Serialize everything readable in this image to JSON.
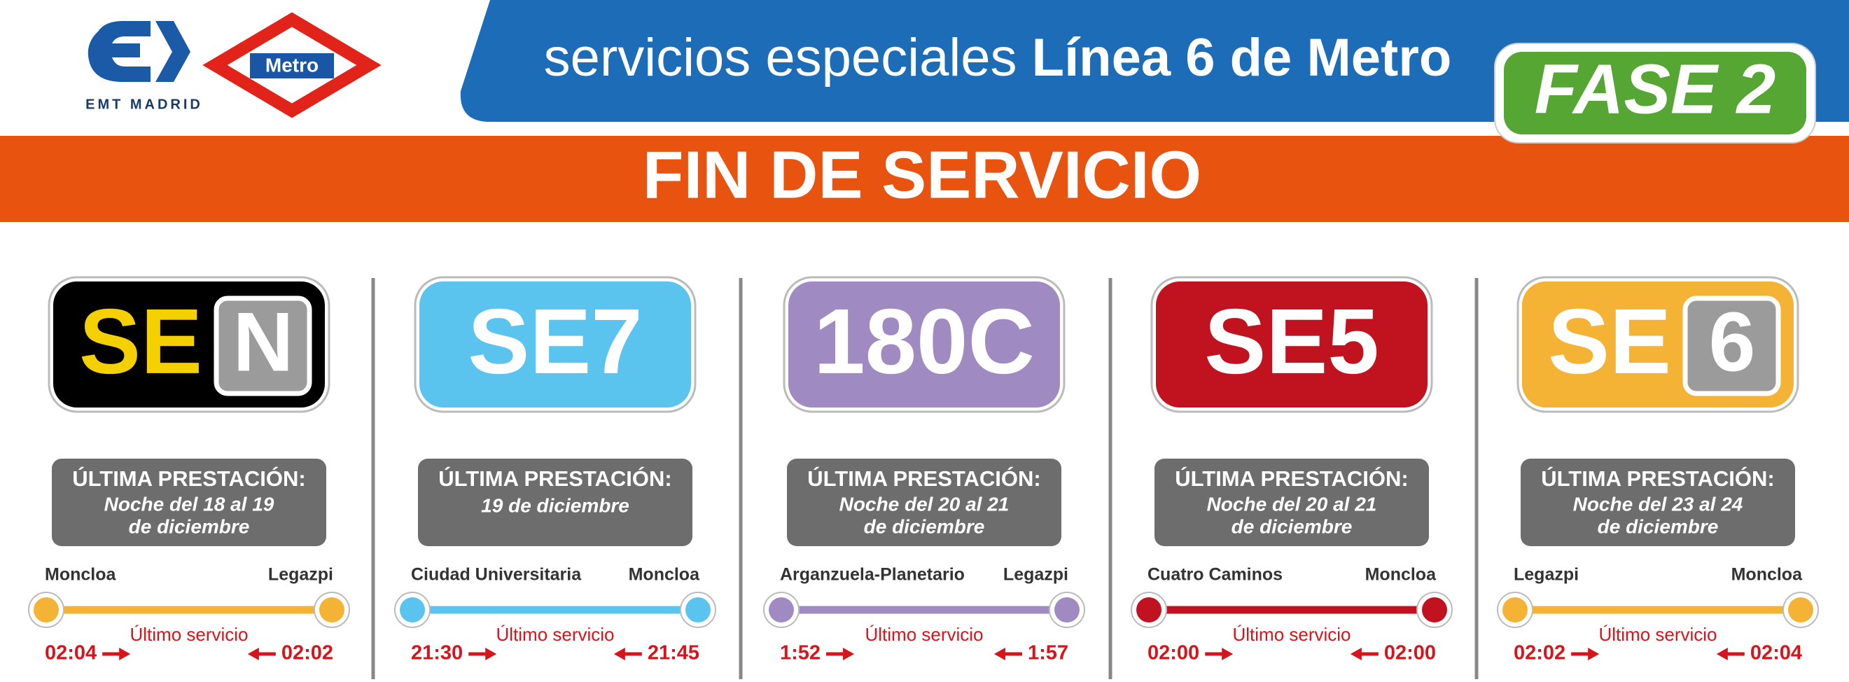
{
  "header": {
    "emt_logo_text": "EMT MADRID",
    "metro_logo_text": "Metro",
    "title_light": "servicios especiales",
    "title_bold": "Línea 6 de Metro",
    "phase": "FASE 2"
  },
  "banner": "FIN DE SERVICIO",
  "columns": [
    {
      "badge": "SE",
      "badge_box": "N",
      "last_label": "ÚLTIMA PRESTACIÓN:",
      "date_lines": [
        "Noche del 18 al 19",
        "de diciembre"
      ],
      "from": "Moncloa",
      "to": "Legazpi",
      "service_label": "Último servicio",
      "departure": "02:04",
      "arrival": "02:02"
    },
    {
      "badge": "SE7",
      "last_label": "ÚLTIMA PRESTACIÓN:",
      "date_lines": [
        "19 de diciembre"
      ],
      "from": "Ciudad Universitaria",
      "to": "Moncloa",
      "service_label": "Último servicio",
      "departure": "21:30",
      "arrival": "21:45"
    },
    {
      "badge": "180C",
      "last_label": "ÚLTIMA PRESTACIÓN:",
      "date_lines": [
        "Noche del 20 al 21",
        "de diciembre"
      ],
      "from": "Arganzuela-Planetario",
      "to": "Legazpi",
      "service_label": "Último servicio",
      "departure": "1:52",
      "arrival": "1:57"
    },
    {
      "badge": "SE5",
      "last_label": "ÚLTIMA PRESTACIÓN:",
      "date_lines": [
        "Noche del 20 al 21",
        "de diciembre"
      ],
      "from": "Cuatro Caminos",
      "to": "Moncloa",
      "service_label": "Último servicio",
      "departure": "02:00",
      "arrival": "02:00"
    },
    {
      "badge": "SE",
      "badge_box": "6",
      "last_label": "ÚLTIMA PRESTACIÓN:",
      "date_lines": [
        "Noche del 23 al 24",
        "de diciembre"
      ],
      "from": "Legazpi",
      "to": "Moncloa",
      "service_label": "Último servicio",
      "departure": "02:02",
      "arrival": "02:04"
    }
  ]
}
